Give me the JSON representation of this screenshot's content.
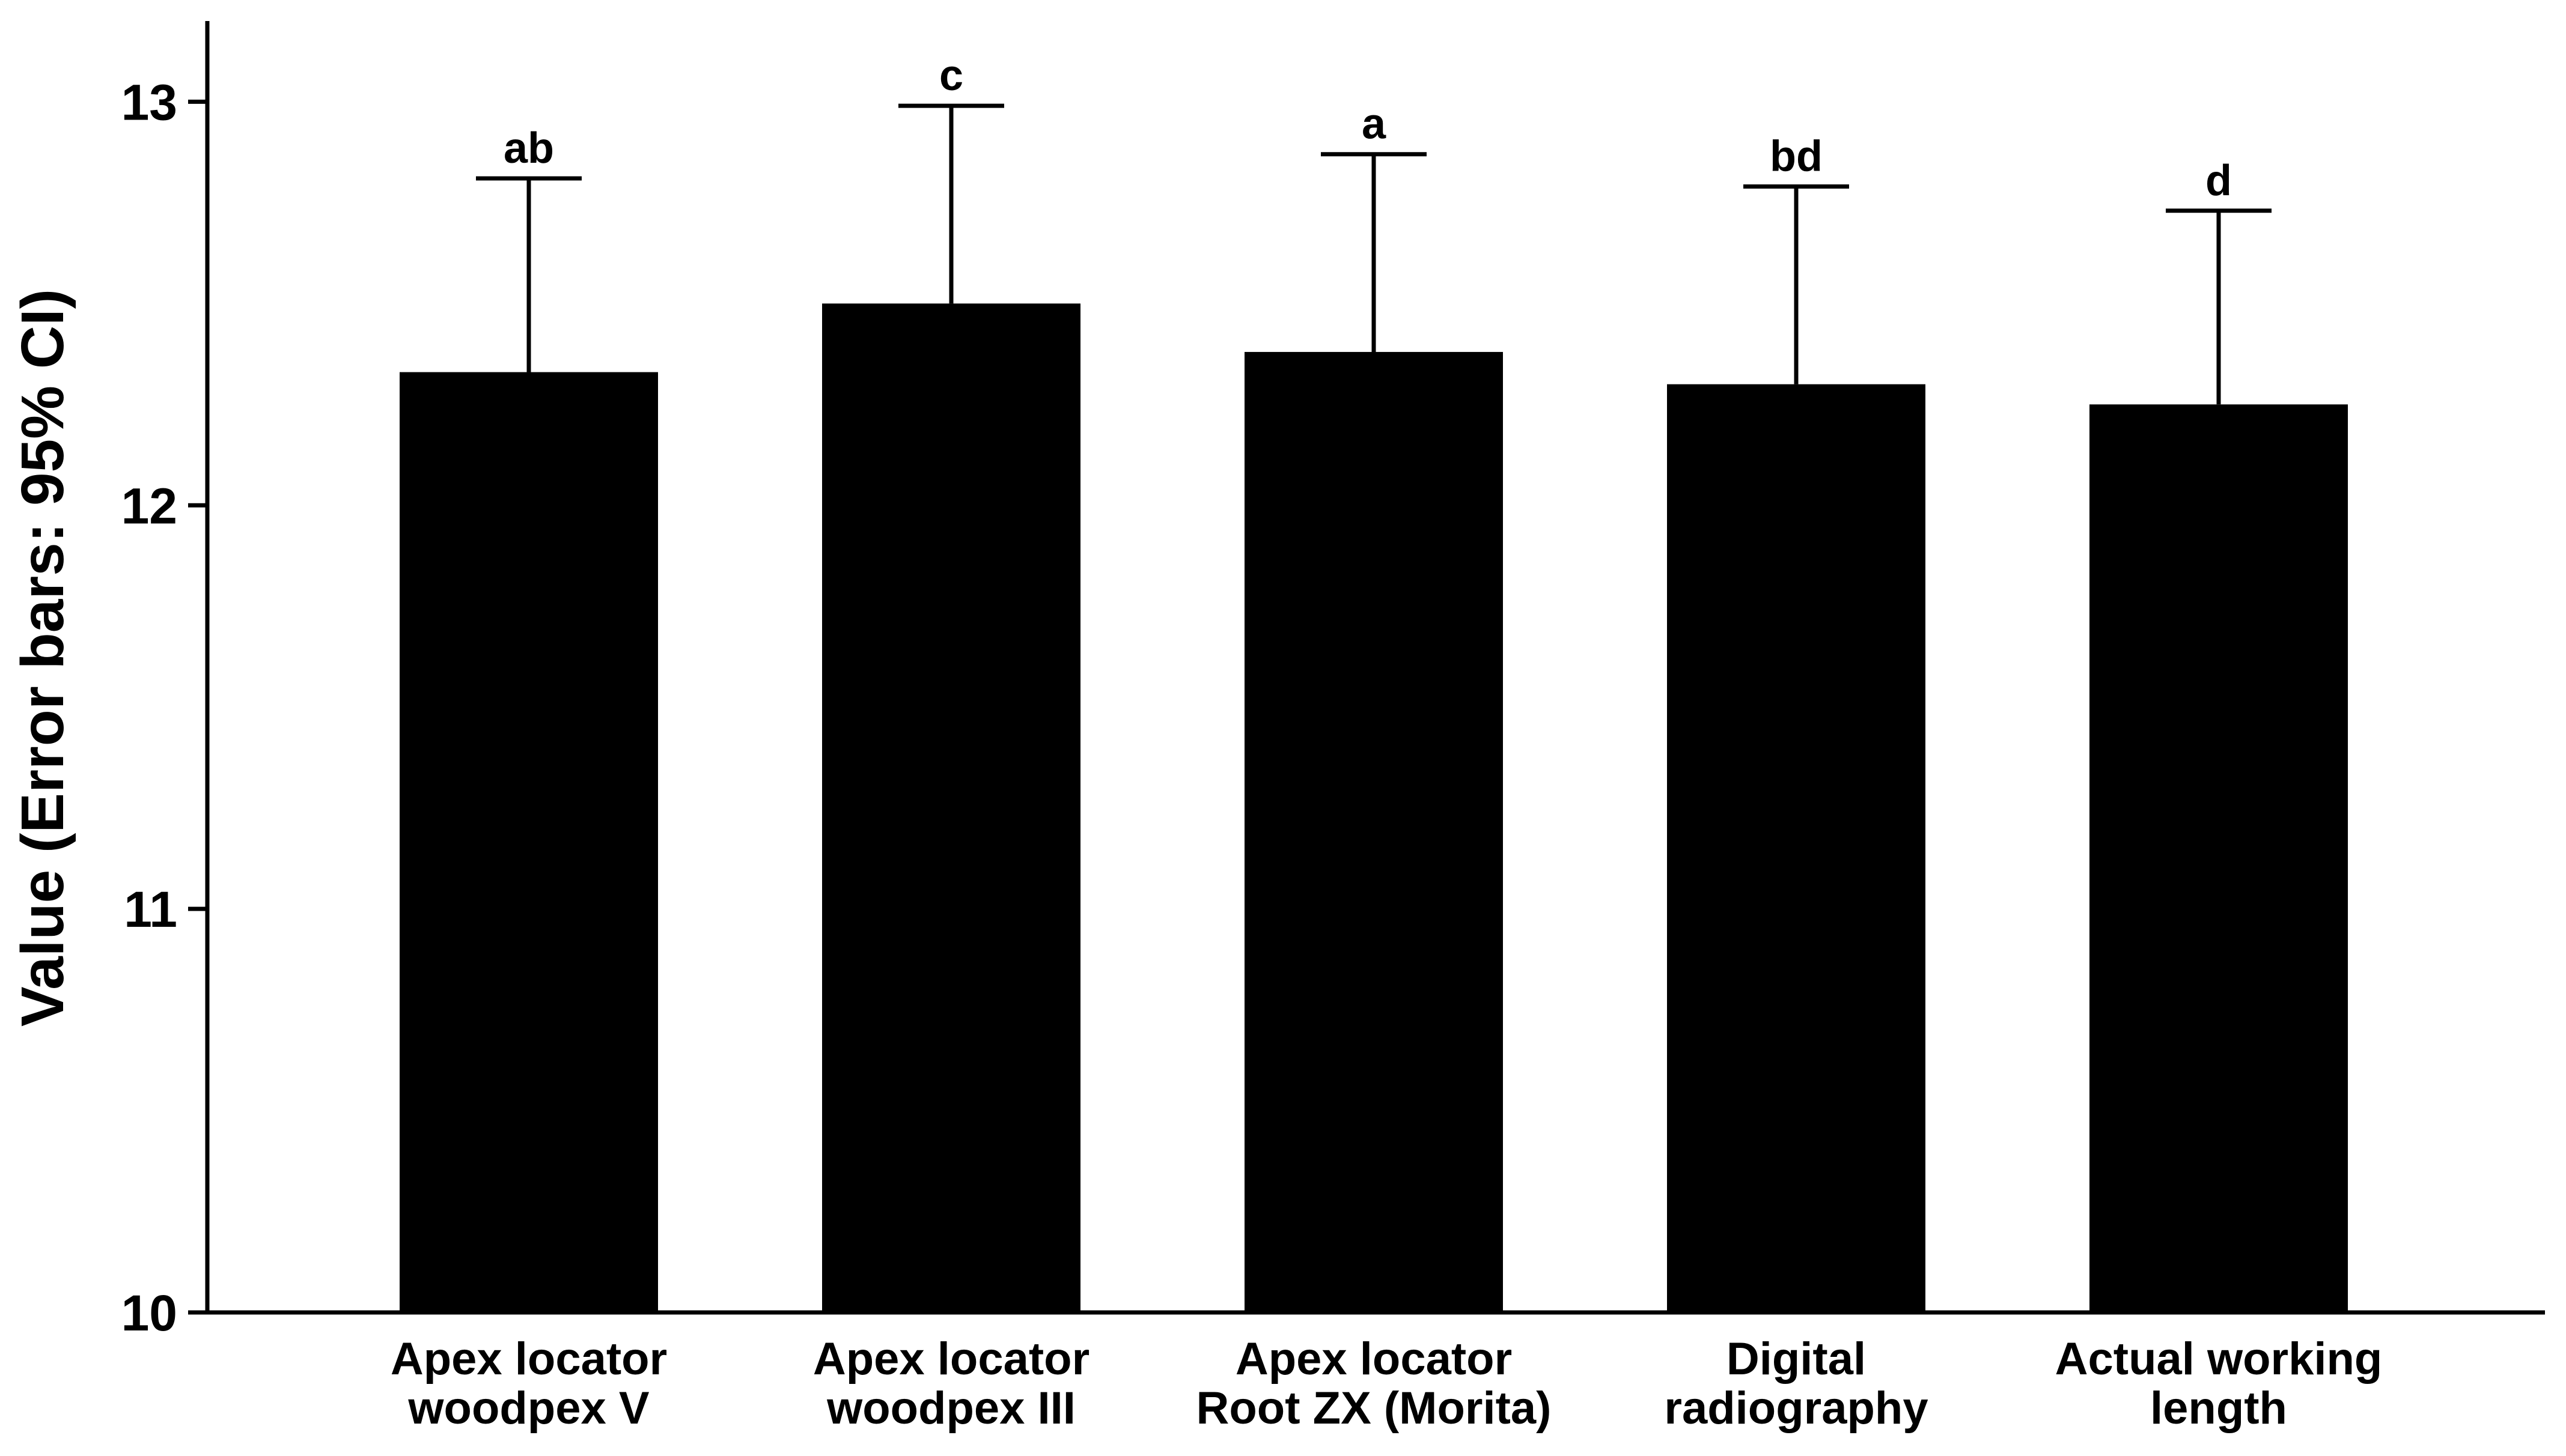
{
  "chart_data": {
    "type": "bar",
    "title": "",
    "xlabel": "",
    "ylabel": "Value (Error bars: 95% CI)",
    "ylim": [
      10,
      13.2
    ],
    "yticks": [
      10,
      11,
      12,
      13
    ],
    "grid": false,
    "categories": [
      [
        "Apex locator",
        "woodpex V"
      ],
      [
        "Apex locator",
        "woodpex III"
      ],
      [
        "Apex locator",
        "Root ZX (Morita)"
      ],
      [
        "Digital",
        "radiography"
      ],
      [
        "Actual working",
        "length"
      ]
    ],
    "values": [
      12.33,
      12.5,
      12.38,
      12.3,
      12.25
    ],
    "error_upper": [
      12.81,
      12.99,
      12.87,
      12.79,
      12.73
    ],
    "group_labels": [
      "ab",
      "c",
      "a",
      "bd",
      "d"
    ],
    "colors": {
      "bar": "#000000",
      "axis": "#000000",
      "background": "#ffffff"
    }
  }
}
